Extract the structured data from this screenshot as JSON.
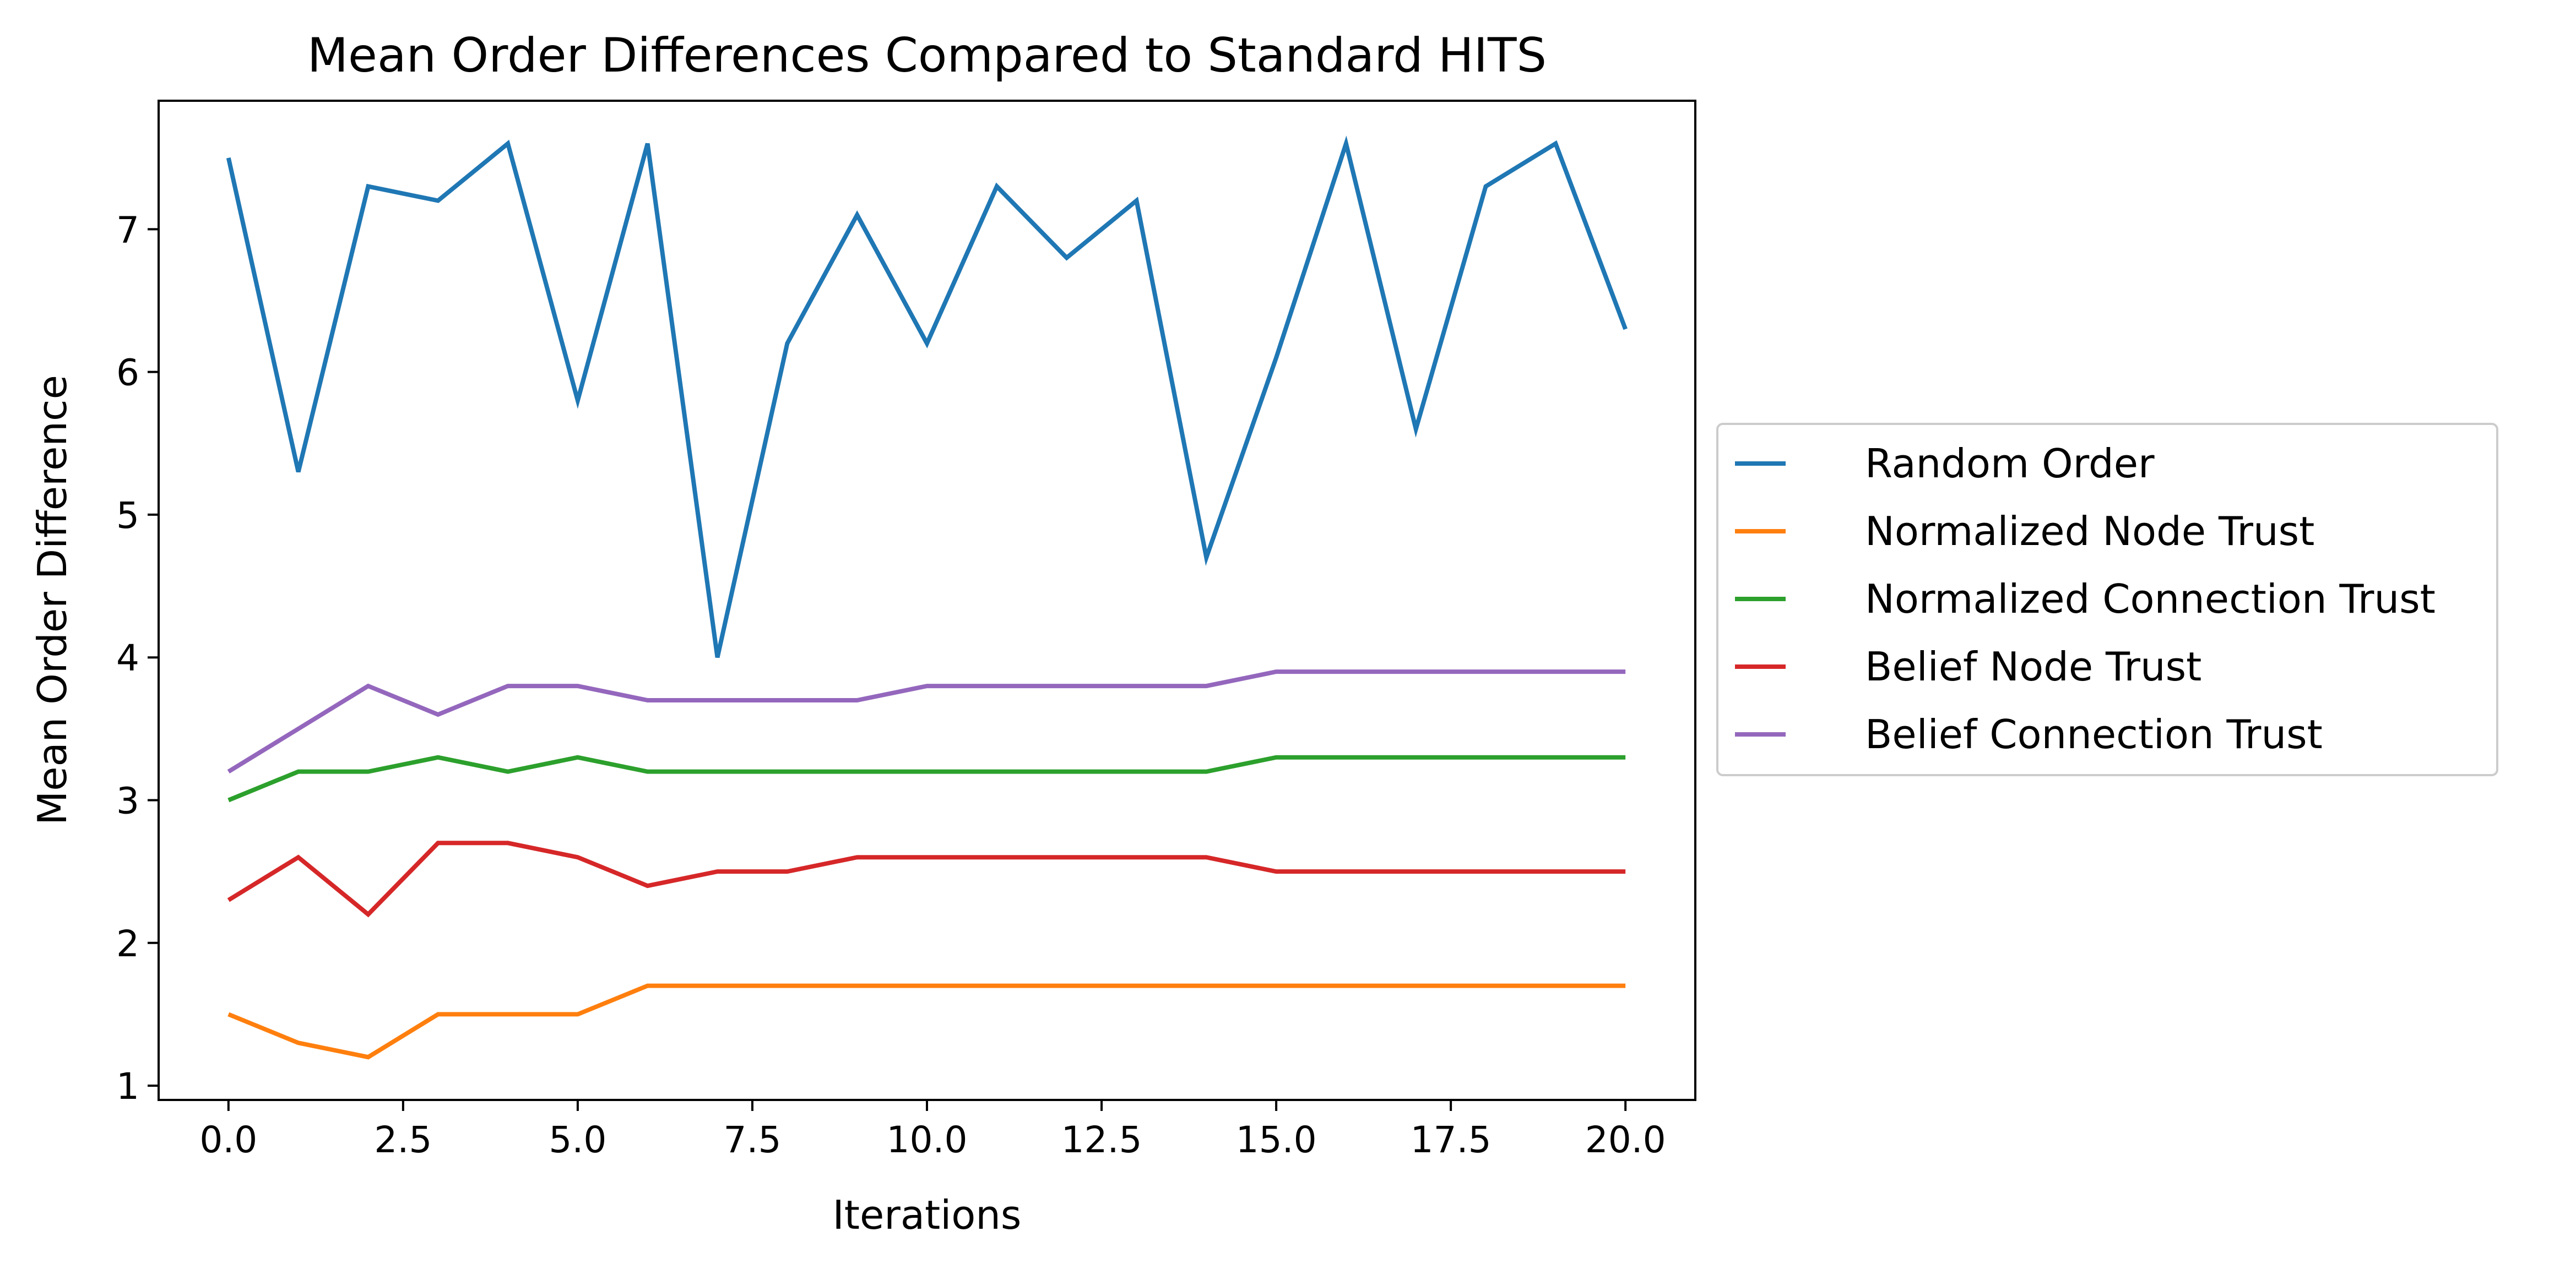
{
  "chart_data": {
    "type": "line",
    "title": "Mean Order Differences Compared to Standard HITS",
    "xlabel": "Iterations",
    "ylabel": "Mean Order Difference",
    "xlim": [
      -1,
      21
    ],
    "ylim": [
      0.9,
      7.9
    ],
    "xticks": [
      "0.0",
      "2.5",
      "5.0",
      "7.5",
      "10.0",
      "12.5",
      "15.0",
      "17.5",
      "20.0"
    ],
    "yticks": [
      "1",
      "2",
      "3",
      "4",
      "5",
      "6",
      "7"
    ],
    "grid": false,
    "legend_position": "center-right outside",
    "x": [
      0,
      1,
      2,
      3,
      4,
      5,
      6,
      7,
      8,
      9,
      10,
      11,
      12,
      13,
      14,
      15,
      16,
      17,
      18,
      19,
      20
    ],
    "series": [
      {
        "name": "Random Order",
        "color": "#1f77b4",
        "values": [
          7.5,
          5.3,
          7.3,
          7.2,
          7.6,
          5.8,
          7.6,
          4.0,
          6.2,
          7.1,
          6.2,
          7.3,
          6.8,
          7.2,
          4.7,
          6.1,
          7.6,
          5.6,
          7.3,
          7.6,
          6.3
        ]
      },
      {
        "name": "Normalized Node Trust",
        "color": "#ff7f0e",
        "values": [
          1.5,
          1.3,
          1.2,
          1.5,
          1.5,
          1.5,
          1.7,
          1.7,
          1.7,
          1.7,
          1.7,
          1.7,
          1.7,
          1.7,
          1.7,
          1.7,
          1.7,
          1.7,
          1.7,
          1.7,
          1.7
        ]
      },
      {
        "name": "Normalized Connection Trust",
        "color": "#2ca02c",
        "values": [
          3.0,
          3.2,
          3.2,
          3.3,
          3.2,
          3.3,
          3.2,
          3.2,
          3.2,
          3.2,
          3.2,
          3.2,
          3.2,
          3.2,
          3.2,
          3.3,
          3.3,
          3.3,
          3.3,
          3.3,
          3.3
        ]
      },
      {
        "name": "Belief Node Trust",
        "color": "#d62728",
        "values": [
          2.3,
          2.6,
          2.2,
          2.7,
          2.7,
          2.6,
          2.4,
          2.5,
          2.5,
          2.6,
          2.6,
          2.6,
          2.6,
          2.6,
          2.6,
          2.5,
          2.5,
          2.5,
          2.5,
          2.5,
          2.5
        ]
      },
      {
        "name": "Belief Connection Trust",
        "color": "#9467bd",
        "values": [
          3.2,
          3.5,
          3.8,
          3.6,
          3.8,
          3.8,
          3.7,
          3.7,
          3.7,
          3.7,
          3.8,
          3.8,
          3.8,
          3.8,
          3.8,
          3.9,
          3.9,
          3.9,
          3.9,
          3.9,
          3.9
        ]
      }
    ]
  }
}
